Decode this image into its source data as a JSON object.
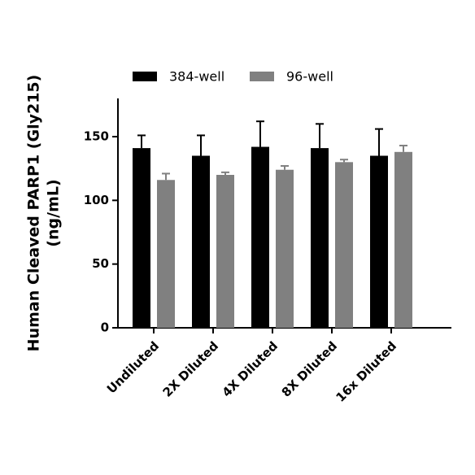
{
  "chart_data": {
    "type": "bar",
    "ylabel": [
      "Human Cleaved PARP1 (Gly215)",
      "(ng/mL)"
    ],
    "categories": [
      "Undiluted",
      "2X Diluted",
      "4X Diluted",
      "8X Diluted",
      "16x Diluted"
    ],
    "series": [
      {
        "name": "384-well",
        "color": "#000000",
        "values": [
          141,
          135,
          142,
          141,
          135
        ],
        "errors": [
          10,
          16,
          20,
          19,
          21
        ]
      },
      {
        "name": "96-well",
        "color": "#808080",
        "values": [
          116,
          120,
          124,
          130,
          138
        ],
        "errors": [
          5,
          2,
          3,
          2,
          5
        ]
      }
    ],
    "ylim": [
      0,
      180
    ],
    "yticks": [
      0,
      50,
      100,
      150
    ],
    "legend": "top"
  }
}
